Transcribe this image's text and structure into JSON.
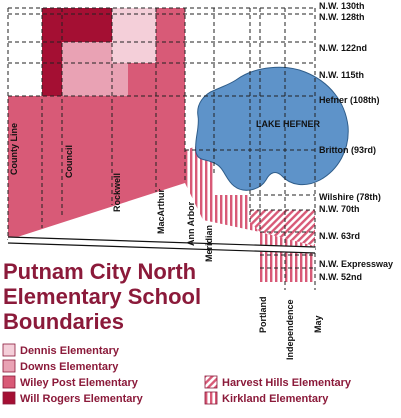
{
  "colors": {
    "dennis": "#f4cfd9",
    "downs": "#e9a2b4",
    "wiley_post": "#d85a77",
    "will_rogers": "#a40f33",
    "harvest_hills": "#d85a77",
    "kirkland": "#d85a77",
    "lake": "#5e93c9",
    "grid": "#222222",
    "title": "#8b1a3a"
  },
  "title": {
    "line1": "Putnam City North",
    "line2": "Elementary School",
    "line3": "Boundaries"
  },
  "lake_label": "LAKE HEFNER",
  "east_west_roads": [
    "N.W. 130th",
    "N.W. 128th",
    "N.W. 122nd",
    "N.W. 115th",
    "Hefner (108th)",
    "Britton (93rd)",
    "Wilshire (78th)",
    "N.W. 70th",
    "N.W. 63rd",
    "N.W. Expressway",
    "N.W. 52nd"
  ],
  "north_south_roads": [
    "County Line",
    "Council",
    "Rockwell",
    "MacArthur",
    "Ann Arbor",
    "Meridian",
    "Portland",
    "Independence",
    "May"
  ],
  "legend": [
    {
      "label": "Dennis Elementary",
      "pattern": "solid",
      "color_key": "dennis"
    },
    {
      "label": "Downs Elementary",
      "pattern": "solid",
      "color_key": "downs"
    },
    {
      "label": "Wiley Post Elementary",
      "pattern": "solid",
      "color_key": "wiley_post"
    },
    {
      "label": "Will Rogers Elementary",
      "pattern": "solid",
      "color_key": "will_rogers"
    },
    {
      "label": "Harvest Hills Elementary",
      "pattern": "diagonal-hatch",
      "color_key": "harvest_hills"
    },
    {
      "label": "Kirkland Elementary",
      "pattern": "vertical-hatch",
      "color_key": "kirkland"
    }
  ]
}
